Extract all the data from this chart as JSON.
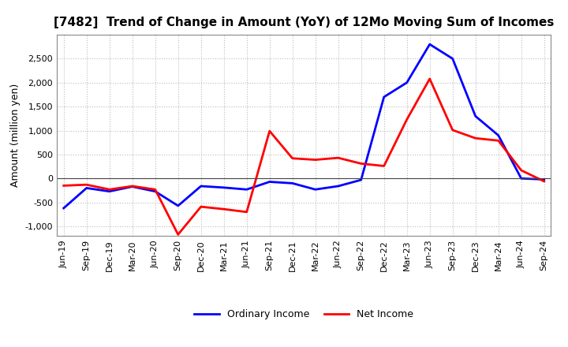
{
  "title": "[7482]  Trend of Change in Amount (YoY) of 12Mo Moving Sum of Incomes",
  "ylabel": "Amount (million yen)",
  "x_labels": [
    "Jun-19",
    "Sep-19",
    "Dec-19",
    "Mar-20",
    "Jun-20",
    "Sep-20",
    "Dec-20",
    "Mar-21",
    "Jun-21",
    "Sep-21",
    "Dec-21",
    "Mar-22",
    "Jun-22",
    "Sep-22",
    "Dec-22",
    "Mar-23",
    "Jun-23",
    "Sep-23",
    "Dec-23",
    "Mar-24",
    "Jun-24",
    "Sep-24"
  ],
  "ordinary_income": [
    -620,
    -200,
    -270,
    -170,
    -270,
    -570,
    -160,
    -190,
    -230,
    -70,
    -100,
    -230,
    -160,
    -30,
    1700,
    2000,
    2800,
    2500,
    1300,
    900,
    0,
    -20
  ],
  "net_income": [
    -150,
    -130,
    -230,
    -160,
    -230,
    -1170,
    -590,
    -640,
    -700,
    990,
    420,
    390,
    430,
    310,
    260,
    1230,
    2080,
    1010,
    840,
    790,
    170,
    -60
  ],
  "ylim": [
    -1200,
    3000
  ],
  "yticks": [
    -1000,
    -500,
    0,
    500,
    1000,
    1500,
    2000,
    2500
  ],
  "ordinary_color": "#0000FF",
  "net_color": "#FF0000",
  "background_color": "#FFFFFF",
  "grid_color": "#BBBBBB",
  "legend_labels": [
    "Ordinary Income",
    "Net Income"
  ],
  "title_fontsize": 11,
  "ylabel_fontsize": 9,
  "tick_fontsize": 8,
  "legend_fontsize": 9,
  "linewidth": 2.0
}
